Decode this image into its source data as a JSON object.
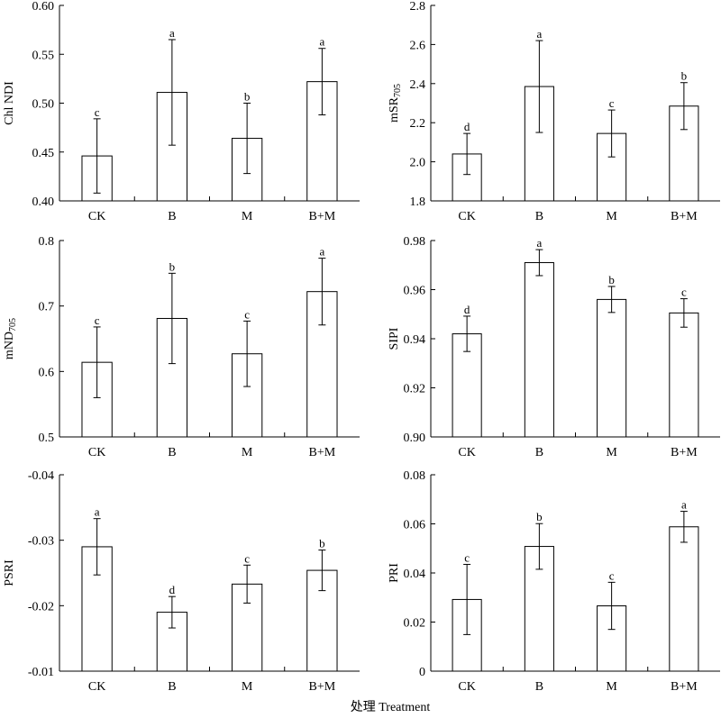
{
  "figure": {
    "xlabel": "处理 Treatment"
  },
  "chart_data": [
    {
      "type": "bar",
      "ylabel": "Chl NDI",
      "ylabel_sub": "",
      "categories": [
        "CK",
        "B",
        "M",
        "B+M"
      ],
      "values": [
        0.446,
        0.511,
        0.464,
        0.522
      ],
      "errors": [
        0.038,
        0.054,
        0.036,
        0.034
      ],
      "letters": [
        "c",
        "a",
        "b",
        "a"
      ],
      "ylim": [
        0.4,
        0.6
      ],
      "yticks": [
        0.4,
        0.45,
        0.5,
        0.55,
        0.6
      ],
      "ytick_labels": [
        "0.40",
        "0.45",
        "0.50",
        "0.55",
        "0.60"
      ],
      "inverted": false
    },
    {
      "type": "bar",
      "ylabel": "mSR",
      "ylabel_sub": "705",
      "categories": [
        "CK",
        "B",
        "M",
        "B+M"
      ],
      "values": [
        2.04,
        2.385,
        2.145,
        2.285
      ],
      "errors": [
        0.105,
        0.235,
        0.12,
        0.12
      ],
      "letters": [
        "d",
        "a",
        "c",
        "b"
      ],
      "ylim": [
        1.8,
        2.8
      ],
      "yticks": [
        1.8,
        2.0,
        2.2,
        2.4,
        2.6,
        2.8
      ],
      "ytick_labels": [
        "1.8",
        "2.0",
        "2.2",
        "2.4",
        "2.6",
        "2.8"
      ],
      "inverted": false
    },
    {
      "type": "bar",
      "ylabel": "mND",
      "ylabel_sub": "705",
      "categories": [
        "CK",
        "B",
        "M",
        "B+M"
      ],
      "values": [
        0.614,
        0.681,
        0.627,
        0.722
      ],
      "errors": [
        0.054,
        0.069,
        0.05,
        0.051
      ],
      "letters": [
        "c",
        "b",
        "c",
        "a"
      ],
      "ylim": [
        0.5,
        0.8
      ],
      "yticks": [
        0.5,
        0.6,
        0.7,
        0.8
      ],
      "ytick_labels": [
        "0.5",
        "0.6",
        "0.7",
        "0.8"
      ],
      "inverted": false
    },
    {
      "type": "bar",
      "ylabel": "SIPI",
      "ylabel_sub": "",
      "categories": [
        "CK",
        "B",
        "M",
        "B+M"
      ],
      "values": [
        0.942,
        0.971,
        0.956,
        0.9505
      ],
      "errors": [
        0.0072,
        0.0053,
        0.0053,
        0.0058
      ],
      "letters": [
        "d",
        "a",
        "b",
        "c"
      ],
      "ylim": [
        0.9,
        0.98
      ],
      "yticks": [
        0.9,
        0.92,
        0.94,
        0.96,
        0.98
      ],
      "ytick_labels": [
        "0.90",
        "0.92",
        "0.94",
        "0.96",
        "0.98"
      ],
      "inverted": false
    },
    {
      "type": "bar",
      "ylabel": "PSRI",
      "ylabel_sub": "",
      "categories": [
        "CK",
        "B",
        "M",
        "B+M"
      ],
      "values": [
        -0.029,
        -0.019,
        -0.0233,
        -0.0254
      ],
      "errors": [
        0.0043,
        0.0024,
        0.0029,
        0.0031
      ],
      "letters": [
        "a",
        "d",
        "c",
        "b"
      ],
      "ylim": [
        -0.01,
        -0.04
      ],
      "yticks": [
        -0.01,
        -0.02,
        -0.03,
        -0.04
      ],
      "ytick_labels": [
        "-0.01",
        "-0.02",
        "-0.03",
        "-0.04"
      ],
      "inverted": true
    },
    {
      "type": "bar",
      "ylabel": "PRI",
      "ylabel_sub": "",
      "categories": [
        "CK",
        "B",
        "M",
        "B+M"
      ],
      "values": [
        0.0292,
        0.0508,
        0.0266,
        0.0588
      ],
      "errors": [
        0.0143,
        0.0093,
        0.0096,
        0.0063
      ],
      "letters": [
        "c",
        "b",
        "c",
        "a"
      ],
      "ylim": [
        0,
        0.08
      ],
      "yticks": [
        0,
        0.02,
        0.04,
        0.06,
        0.08
      ],
      "ytick_labels": [
        "0",
        "0.02",
        "0.04",
        "0.06",
        "0.08"
      ],
      "inverted": false
    }
  ]
}
